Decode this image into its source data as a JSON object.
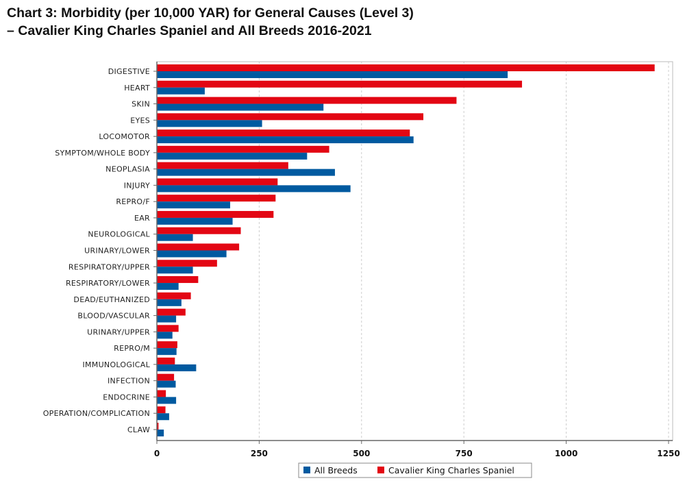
{
  "title_line1": "Chart 3: Morbidity (per 10,000 YAR) for General Causes (Level 3)",
  "title_line2": "–  Cavalier King Charles Spaniel and All Breeds 2016-2021",
  "chart_data": {
    "type": "bar",
    "orientation": "horizontal",
    "title": "Chart 3: Morbidity (per 10,000 YAR) for General Causes (Level 3) –  Cavalier King Charles Spaniel and All Breeds 2016-2021",
    "xlabel": "",
    "ylabel": "",
    "xlim": [
      0,
      1250
    ],
    "xticks": [
      0,
      250,
      500,
      750,
      1000,
      1250
    ],
    "grid": "vertical dashed",
    "legend": "bottom",
    "categories": [
      "DIGESTIVE",
      "HEART",
      "SKIN",
      "EYES",
      "LOCOMOTOR",
      "SYMPTOM/WHOLE BODY",
      "NEOPLASIA",
      "INJURY",
      "REPRO/F",
      "EAR",
      "NEUROLOGICAL",
      "URINARY/LOWER",
      "RESPIRATORY/UPPER",
      "RESPIRATORY/LOWER",
      "DEAD/EUTHANIZED",
      "BLOOD/VASCULAR",
      "URINARY/UPPER",
      "REPRO/M",
      "IMMUNOLOGICAL",
      "INFECTION",
      "ENDOCRINE",
      "OPERATION/COMPLICATION",
      "CLAW"
    ],
    "series": [
      {
        "name": "All Breeds",
        "color": "#005aa0",
        "values": [
          857,
          117,
          407,
          257,
          627,
          367,
          435,
          473,
          179,
          185,
          88,
          170,
          88,
          53,
          60,
          47,
          38,
          48,
          96,
          46,
          47,
          30,
          17
        ]
      },
      {
        "name": "Cavalier King Charles Spaniel",
        "color": "#e30613",
        "values": [
          1216,
          892,
          732,
          651,
          618,
          421,
          321,
          295,
          290,
          285,
          205,
          201,
          147,
          101,
          83,
          70,
          53,
          50,
          44,
          42,
          22,
          21,
          4
        ]
      }
    ]
  }
}
